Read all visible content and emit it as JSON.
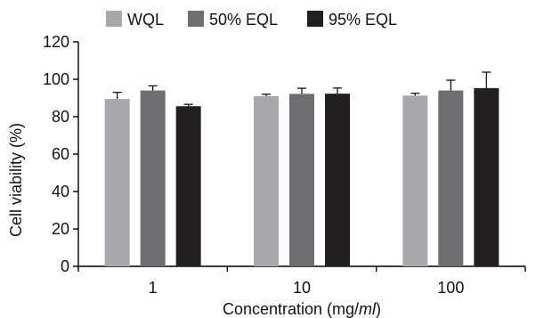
{
  "chart_data": {
    "type": "bar",
    "categories": [
      "1",
      "10",
      "100"
    ],
    "series": [
      {
        "name": "WQL",
        "values": [
          89.5,
          91.0,
          91.3
        ],
        "errors": [
          3.5,
          1.0,
          1.2
        ],
        "color": "#a7a9ac"
      },
      {
        "name": "50% EQL",
        "values": [
          94.0,
          92.2,
          94.0
        ],
        "errors": [
          2.5,
          3.0,
          5.5
        ],
        "color": "#6d6e71"
      },
      {
        "name": "95% EQL",
        "values": [
          85.6,
          92.3,
          95.3
        ],
        "errors": [
          1.0,
          3.0,
          8.5
        ],
        "color": "#231f20"
      }
    ],
    "ylim": [
      0,
      120
    ],
    "yticks": [
      0,
      20,
      40,
      60,
      80,
      100,
      120
    ],
    "xlabel": "Concentration (mg/",
    "xlabel_italic": "ml",
    "xlabel_suffix": ")",
    "ylabel": "Cell viability (%)",
    "legend_position": "top",
    "grid": false
  }
}
